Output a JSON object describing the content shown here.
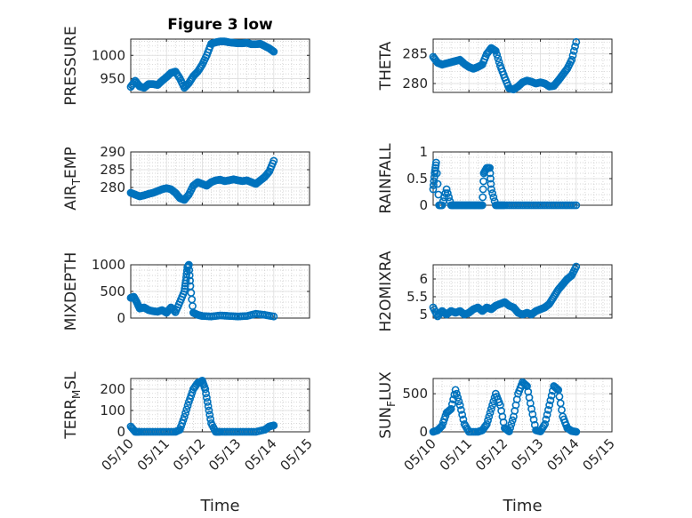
{
  "figure": {
    "title": "Figure 3 low",
    "x_axis_label": "Time",
    "x_tick_labels": [
      "05/10",
      "05/11",
      "05/12",
      "05/13",
      "05/14",
      "05/15"
    ],
    "marker_color": "#0072BD",
    "grid_color": "#c8c8c8"
  },
  "chart_data": [
    {
      "type": "scatter",
      "ylabel": "PRESSURE",
      "ylim": [
        920,
        1035
      ],
      "yticks": [
        950,
        1000
      ],
      "xlim": [
        "05/10",
        "05/15"
      ],
      "grid": true,
      "marker": "circle",
      "x": [
        "05/10 00:00",
        "05/10 03:00",
        "05/10 06:00",
        "05/10 09:00",
        "05/10 12:00",
        "05/10 15:00",
        "05/10 18:00",
        "05/10 21:00",
        "05/11 00:00",
        "05/11 03:00",
        "05/11 06:00",
        "05/11 09:00",
        "05/11 12:00",
        "05/11 15:00",
        "05/11 18:00",
        "05/11 21:00",
        "05/12 00:00",
        "05/12 03:00",
        "05/12 06:00",
        "05/12 09:00",
        "05/12 12:00",
        "05/12 15:00",
        "05/12 18:00",
        "05/12 21:00",
        "05/13 00:00",
        "05/13 03:00",
        "05/13 06:00",
        "05/13 09:00",
        "05/13 12:00",
        "05/13 15:00",
        "05/13 18:00",
        "05/13 21:00",
        "05/14 00:00"
      ],
      "values": [
        932,
        945,
        933,
        930,
        938,
        938,
        936,
        945,
        953,
        962,
        965,
        950,
        930,
        940,
        955,
        965,
        980,
        1000,
        1025,
        1028,
        1030,
        1030,
        1028,
        1027,
        1026,
        1026,
        1027,
        1024,
        1024,
        1025,
        1020,
        1015,
        1008
      ]
    },
    {
      "type": "scatter",
      "ylabel": "THETA",
      "ylim": [
        278.5,
        287.5
      ],
      "yticks": [
        280,
        285
      ],
      "xlim": [
        "05/10",
        "05/15"
      ],
      "grid": true,
      "marker": "circle",
      "x": [
        "05/10 00:00",
        "05/10 03:00",
        "05/10 06:00",
        "05/10 09:00",
        "05/10 12:00",
        "05/10 15:00",
        "05/10 18:00",
        "05/10 21:00",
        "05/11 00:00",
        "05/11 03:00",
        "05/11 06:00",
        "05/11 09:00",
        "05/11 12:00",
        "05/11 15:00",
        "05/11 18:00",
        "05/11 21:00",
        "05/12 00:00",
        "05/12 03:00",
        "05/12 06:00",
        "05/12 09:00",
        "05/12 12:00",
        "05/12 15:00",
        "05/12 18:00",
        "05/12 21:00",
        "05/13 00:00",
        "05/13 03:00",
        "05/13 06:00",
        "05/13 09:00",
        "05/13 12:00",
        "05/13 15:00",
        "05/13 18:00",
        "05/13 21:00",
        "05/14 00:00"
      ],
      "values": [
        284.5,
        283.5,
        283.2,
        283.4,
        283.6,
        283.8,
        284.0,
        283.3,
        282.8,
        282.5,
        282.8,
        283.2,
        285.0,
        286.0,
        285.5,
        283.0,
        281.0,
        279.2,
        279.0,
        279.5,
        280.2,
        280.5,
        280.3,
        280.0,
        280.2,
        280.0,
        279.5,
        279.6,
        280.5,
        281.5,
        282.5,
        284.0,
        287.0
      ]
    },
    {
      "type": "scatter",
      "ylabel": "AIR_TEMP",
      "ylim": [
        275,
        290
      ],
      "yticks": [
        280,
        285,
        290
      ],
      "xlim": [
        "05/10",
        "05/15"
      ],
      "grid": true,
      "marker": "circle",
      "x": [
        "05/10 00:00",
        "05/10 03:00",
        "05/10 06:00",
        "05/10 09:00",
        "05/10 12:00",
        "05/10 15:00",
        "05/10 18:00",
        "05/10 21:00",
        "05/11 00:00",
        "05/11 03:00",
        "05/11 06:00",
        "05/11 09:00",
        "05/11 12:00",
        "05/11 15:00",
        "05/11 18:00",
        "05/11 21:00",
        "05/12 00:00",
        "05/12 03:00",
        "05/12 06:00",
        "05/12 09:00",
        "05/12 12:00",
        "05/12 15:00",
        "05/12 18:00",
        "05/12 21:00",
        "05/13 00:00",
        "05/13 03:00",
        "05/13 06:00",
        "05/13 09:00",
        "05/13 12:00",
        "05/13 15:00",
        "05/13 18:00",
        "05/13 21:00",
        "05/14 00:00"
      ],
      "values": [
        278.5,
        278.0,
        277.5,
        277.8,
        278.2,
        278.5,
        279.0,
        279.5,
        279.8,
        279.5,
        278.5,
        277.0,
        276.5,
        278.0,
        280.5,
        281.5,
        281.0,
        280.5,
        281.5,
        282.0,
        282.2,
        281.8,
        282.0,
        282.3,
        282.0,
        281.8,
        282.0,
        281.5,
        281.0,
        282.0,
        283.0,
        284.5,
        287.5
      ]
    },
    {
      "type": "scatter",
      "ylabel": "RAINFALL",
      "ylim": [
        0,
        1
      ],
      "yticks": [
        0,
        0.5,
        1
      ],
      "xlim": [
        "05/10",
        "05/15"
      ],
      "grid": true,
      "marker": "circle",
      "x": [
        "05/10 00:00",
        "05/10 01:00",
        "05/10 02:00",
        "05/10 04:00",
        "05/10 06:00",
        "05/10 09:00",
        "05/10 12:00",
        "05/10 15:00",
        "05/10 18:00",
        "05/10 21:00",
        "05/11 00:00",
        "05/11 03:00",
        "05/11 06:00",
        "05/11 09:00",
        "05/11 10:00",
        "05/11 12:00",
        "05/11 14:00",
        "05/11 15:00",
        "05/11 18:00",
        "05/11 21:00",
        "05/12 00:00",
        "05/12 06:00",
        "05/12 12:00",
        "05/12 18:00",
        "05/13 00:00",
        "05/13 06:00",
        "05/13 12:00",
        "05/13 18:00",
        "05/14 00:00"
      ],
      "values": [
        0.3,
        0.6,
        0.8,
        0,
        0,
        0.3,
        0,
        0,
        0,
        0,
        0,
        0,
        0,
        0,
        0.6,
        0.7,
        0.7,
        0.3,
        0,
        0,
        0,
        0,
        0,
        0,
        0,
        0,
        0,
        0,
        0
      ]
    },
    {
      "type": "scatter",
      "ylabel": "MIXDEPTH",
      "ylim": [
        0,
        1000
      ],
      "yticks": [
        0,
        500,
        1000
      ],
      "xlim": [
        "05/10",
        "05/15"
      ],
      "grid": true,
      "marker": "circle",
      "x": [
        "05/10 00:00",
        "05/10 02:00",
        "05/10 04:00",
        "05/10 06:00",
        "05/10 09:00",
        "05/10 12:00",
        "05/10 15:00",
        "05/10 18:00",
        "05/10 21:00",
        "05/11 00:00",
        "05/11 03:00",
        "05/11 06:00",
        "05/11 09:00",
        "05/11 12:00",
        "05/11 13:00",
        "05/11 14:00",
        "05/11 15:00",
        "05/11 16:00",
        "05/11 18:00",
        "05/11 21:00",
        "05/12 00:00",
        "05/12 06:00",
        "05/12 12:00",
        "05/12 18:00",
        "05/13 00:00",
        "05/13 06:00",
        "05/13 12:00",
        "05/13 18:00",
        "05/14 00:00"
      ],
      "values": [
        380,
        400,
        300,
        180,
        200,
        150,
        130,
        120,
        150,
        100,
        200,
        110,
        300,
        500,
        700,
        950,
        1000,
        600,
        100,
        60,
        40,
        30,
        50,
        40,
        30,
        40,
        80,
        60,
        30
      ]
    },
    {
      "type": "scatter",
      "ylabel": "H2OMIXRA",
      "ylim": [
        4.9,
        6.4
      ],
      "yticks": [
        5,
        5.5,
        6
      ],
      "xlim": [
        "05/10",
        "05/15"
      ],
      "grid": true,
      "marker": "circle",
      "x": [
        "05/10 00:00",
        "05/10 03:00",
        "05/10 06:00",
        "05/10 09:00",
        "05/10 12:00",
        "05/10 15:00",
        "05/10 18:00",
        "05/10 21:00",
        "05/11 00:00",
        "05/11 03:00",
        "05/11 06:00",
        "05/11 09:00",
        "05/11 12:00",
        "05/11 15:00",
        "05/11 18:00",
        "05/11 21:00",
        "05/12 00:00",
        "05/12 03:00",
        "05/12 06:00",
        "05/12 09:00",
        "05/12 12:00",
        "05/12 15:00",
        "05/12 18:00",
        "05/12 21:00",
        "05/13 00:00",
        "05/13 03:00",
        "05/13 06:00",
        "05/13 09:00",
        "05/13 12:00",
        "05/13 15:00",
        "05/13 18:00",
        "05/13 21:00",
        "05/14 00:00"
      ],
      "values": [
        5.2,
        4.95,
        5.1,
        5.0,
        5.1,
        5.05,
        5.1,
        5.0,
        5.05,
        5.15,
        5.2,
        5.1,
        5.2,
        5.15,
        5.25,
        5.3,
        5.35,
        5.25,
        5.2,
        5.05,
        5.0,
        5.05,
        5.0,
        5.1,
        5.15,
        5.2,
        5.3,
        5.5,
        5.7,
        5.85,
        6.0,
        6.1,
        6.35
      ]
    },
    {
      "type": "scatter",
      "ylabel": "TERR_MSL",
      "ylim": [
        0,
        250
      ],
      "yticks": [
        0,
        100,
        200
      ],
      "xlim": [
        "05/10",
        "05/15"
      ],
      "grid": true,
      "marker": "circle",
      "x": [
        "05/10 00:00",
        "05/10 03:00",
        "05/10 06:00",
        "05/10 12:00",
        "05/10 18:00",
        "05/11 00:00",
        "05/11 06:00",
        "05/11 09:00",
        "05/11 12:00",
        "05/11 15:00",
        "05/11 18:00",
        "05/11 21:00",
        "05/12 00:00",
        "05/12 02:00",
        "05/12 04:00",
        "05/12 06:00",
        "05/12 09:00",
        "05/12 12:00",
        "05/12 18:00",
        "05/13 00:00",
        "05/13 06:00",
        "05/13 12:00",
        "05/13 18:00",
        "05/13 21:00",
        "05/14 00:00"
      ],
      "values": [
        25,
        0,
        0,
        0,
        0,
        0,
        0,
        10,
        70,
        140,
        200,
        230,
        240,
        200,
        120,
        40,
        0,
        0,
        0,
        0,
        0,
        0,
        10,
        25,
        30
      ]
    },
    {
      "type": "scatter",
      "ylabel": "SUN_FLUX",
      "ylim": [
        0,
        700
      ],
      "yticks": [
        0,
        500
      ],
      "xlim": [
        "05/10",
        "05/15"
      ],
      "grid": true,
      "marker": "circle",
      "x": [
        "05/10 00:00",
        "05/10 03:00",
        "05/10 06:00",
        "05/10 09:00",
        "05/10 12:00",
        "05/10 15:00",
        "05/10 18:00",
        "05/10 21:00",
        "05/11 00:00",
        "05/11 06:00",
        "05/11 09:00",
        "05/11 12:00",
        "05/11 15:00",
        "05/11 18:00",
        "05/11 21:00",
        "05/12 00:00",
        "05/12 03:00",
        "05/12 06:00",
        "05/12 09:00",
        "05/12 12:00",
        "05/12 15:00",
        "05/12 18:00",
        "05/12 21:00",
        "05/13 00:00",
        "05/13 03:00",
        "05/13 06:00",
        "05/13 09:00",
        "05/13 12:00",
        "05/13 15:00",
        "05/13 18:00",
        "05/13 21:00",
        "05/14 00:00"
      ],
      "values": [
        0,
        20,
        80,
        250,
        300,
        550,
        350,
        100,
        0,
        0,
        20,
        100,
        300,
        500,
        350,
        50,
        5,
        200,
        500,
        650,
        600,
        300,
        20,
        5,
        100,
        350,
        600,
        550,
        200,
        50,
        10,
        0
      ]
    }
  ]
}
